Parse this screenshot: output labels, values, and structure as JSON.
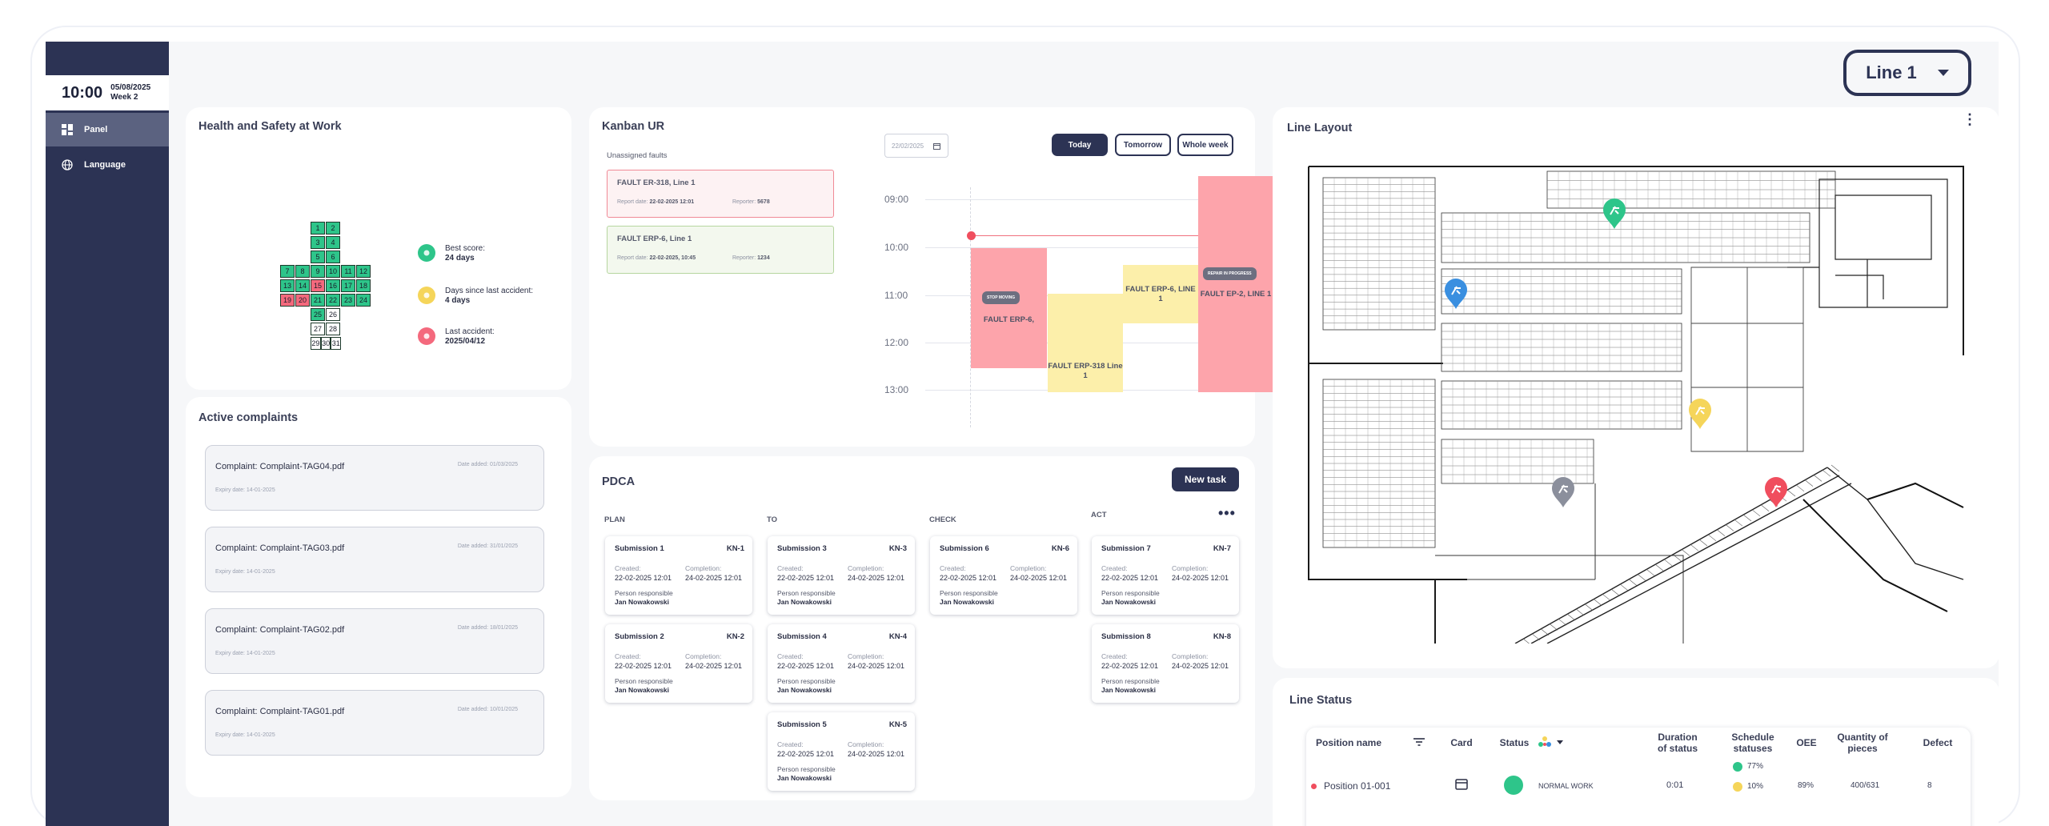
{
  "sidebar": {
    "time": "10:00",
    "date": "05/08/2025",
    "week": "Week 2",
    "items": [
      {
        "label": "Panel",
        "icon": "dashboard-icon"
      },
      {
        "label": "Language",
        "icon": "globe-icon"
      }
    ]
  },
  "line_selector": {
    "value": "Line 1"
  },
  "health": {
    "title": "Health and Safety at Work",
    "calendar": [
      {
        "d": "1",
        "s": "g"
      },
      {
        "d": "2",
        "s": "g"
      },
      {
        "d": "3",
        "s": "g"
      },
      {
        "d": "4",
        "s": "g"
      },
      {
        "d": "5",
        "s": "g"
      },
      {
        "d": "6",
        "s": "g"
      },
      {
        "d": "7",
        "s": "g"
      },
      {
        "d": "8",
        "s": "g"
      },
      {
        "d": "9",
        "s": "g"
      },
      {
        "d": "10",
        "s": "g"
      },
      {
        "d": "11",
        "s": "g"
      },
      {
        "d": "12",
        "s": "g"
      },
      {
        "d": "13",
        "s": "g"
      },
      {
        "d": "14",
        "s": "g"
      },
      {
        "d": "15",
        "s": "r"
      },
      {
        "d": "16",
        "s": "g"
      },
      {
        "d": "17",
        "s": "g"
      },
      {
        "d": "18",
        "s": "g"
      },
      {
        "d": "19",
        "s": "r"
      },
      {
        "d": "20",
        "s": "r"
      },
      {
        "d": "21",
        "s": "g"
      },
      {
        "d": "22",
        "s": "g"
      },
      {
        "d": "23",
        "s": "g"
      },
      {
        "d": "24",
        "s": "g"
      },
      {
        "d": "25",
        "s": "g"
      },
      {
        "d": "26",
        "s": "w"
      },
      {
        "d": "27",
        "s": "w"
      },
      {
        "d": "28",
        "s": "w"
      },
      {
        "d": "29",
        "s": "w"
      },
      {
        "d": "30",
        "s": "w"
      },
      {
        "d": "31",
        "s": "w"
      }
    ],
    "legend": [
      {
        "label": "Best score:",
        "value": "24 days",
        "color": "#2ec58a",
        "icon": "star-icon"
      },
      {
        "label": "Days since last accident:",
        "value": "4 days",
        "color": "#f5d55a",
        "icon": "sun-icon"
      },
      {
        "label": "Last accident:",
        "value": "2025/04/12",
        "color": "#f4697d",
        "icon": "lock-icon"
      }
    ]
  },
  "complaints": {
    "title": "Active complaints",
    "items": [
      {
        "name": "Complaint: Complaint-TAG04.pdf",
        "date_added": "Date added: 01/03/2025",
        "expiry": "Expiry date: 14-01-2025"
      },
      {
        "name": "Complaint: Complaint-TAG03.pdf",
        "date_added": "Date added: 31/01/2025",
        "expiry": "Expiry date: 14-01-2025"
      },
      {
        "name": "Complaint: Complaint-TAG02.pdf",
        "date_added": "Date added: 18/01/2025",
        "expiry": "Expiry date: 14-01-2025"
      },
      {
        "name": "Complaint: Complaint-TAG01.pdf",
        "date_added": "Date added: 10/01/2025",
        "expiry": "Expiry date: 14-01-2025"
      }
    ]
  },
  "kanban": {
    "title": "Kanban UR",
    "unassigned_label": "Unassigned faults",
    "date_value": "22/02/2025",
    "buttons": {
      "today": "Today",
      "tomorrow": "Tomorrow",
      "week": "Whole week"
    },
    "faults": [
      {
        "title": "FAULT ER-318, Line 1",
        "report_label": "Report date:",
        "report_date": "22-02-2025 12:01",
        "reporter_label": "Reporter:",
        "reporter": "5678"
      },
      {
        "title": "FAULT ERP-6, Line 1",
        "report_label": "Report date:",
        "report_date": "22-02-2025, 10:45",
        "reporter_label": "Reporter:",
        "reporter": "1234"
      }
    ],
    "hours": [
      "09:00",
      "10:00",
      "11:00",
      "12:00",
      "13:00"
    ],
    "blocks": [
      {
        "label": "FAULT ERP-6,",
        "tag": "STOP MOVING"
      },
      {
        "label": "FAULT ERP-318 Line 1",
        "tag": ""
      },
      {
        "label": "FAULT ERP-6, LINE 1",
        "tag": ""
      },
      {
        "label": "FAULT EP-2, LINE 1",
        "tag": "REPAIR IN PROGRESS"
      }
    ]
  },
  "pdca": {
    "title": "PDCA",
    "new_task": "New task",
    "columns": [
      "PLAN",
      "TO",
      "CHECK",
      "ACT"
    ],
    "created_label": "Created:",
    "completion_label": "Completion:",
    "person_label": "Person responsible",
    "cards": [
      {
        "col": 0,
        "row": 0,
        "name": "Submission 1",
        "kn": "KN-1",
        "created": "22-02-2025 12:01",
        "completion": "24-02-2025 12:01",
        "person": "Jan Nowakowski"
      },
      {
        "col": 0,
        "row": 1,
        "name": "Submission 2",
        "kn": "KN-2",
        "created": "22-02-2025 12:01",
        "completion": "24-02-2025 12:01",
        "person": "Jan Nowakowski"
      },
      {
        "col": 1,
        "row": 0,
        "name": "Submission 3",
        "kn": "KN-3",
        "created": "22-02-2025 12:01",
        "completion": "24-02-2025 12:01",
        "person": "Jan Nowakowski"
      },
      {
        "col": 1,
        "row": 1,
        "name": "Submission 4",
        "kn": "KN-4",
        "created": "22-02-2025 12:01",
        "completion": "24-02-2025 12:01",
        "person": "Jan Nowakowski"
      },
      {
        "col": 1,
        "row": 2,
        "name": "Submission 5",
        "kn": "KN-5",
        "created": "22-02-2025 12:01",
        "completion": "24-02-2025 12:01",
        "person": "Jan Nowakowski"
      },
      {
        "col": 2,
        "row": 0,
        "name": "Submission 6",
        "kn": "KN-6",
        "created": "22-02-2025 12:01",
        "completion": "24-02-2025 12:01",
        "person": "Jan Nowakowski"
      },
      {
        "col": 3,
        "row": 0,
        "name": "Submission 7",
        "kn": "KN-7",
        "created": "22-02-2025 12:01",
        "completion": "24-02-2025 12:01",
        "person": "Jan Nowakowski"
      },
      {
        "col": 3,
        "row": 1,
        "name": "Submission 8",
        "kn": "KN-8",
        "created": "22-02-2025 12:01",
        "completion": "24-02-2025 12:01",
        "person": "Jan Nowakowski"
      }
    ]
  },
  "layout": {
    "title": "Line Layout",
    "markers": [
      {
        "color": "#2ec58a",
        "name": "green-marker"
      },
      {
        "color": "#3a8fe0",
        "name": "blue-marker"
      },
      {
        "color": "#f5d55a",
        "name": "yellow-marker"
      },
      {
        "color": "#8b8f9c",
        "name": "grey-marker"
      },
      {
        "color": "#f04e5e",
        "name": "red-marker"
      }
    ]
  },
  "status": {
    "title": "Line Status",
    "headers": {
      "position": "Position name",
      "card": "Card",
      "status": "Status",
      "duration": "Duration of status",
      "schedule": "Schedule statuses",
      "oee": "OEE",
      "quantity": "Quantity of pieces",
      "defect": "Defect"
    },
    "rows": [
      {
        "position": "Position 01-001",
        "status_text": "NORMAL WORK",
        "duration": "0:01",
        "schedule": [
          "77%",
          "10%"
        ],
        "oee": "89%",
        "quantity": "400/631",
        "defect": "8"
      }
    ]
  }
}
